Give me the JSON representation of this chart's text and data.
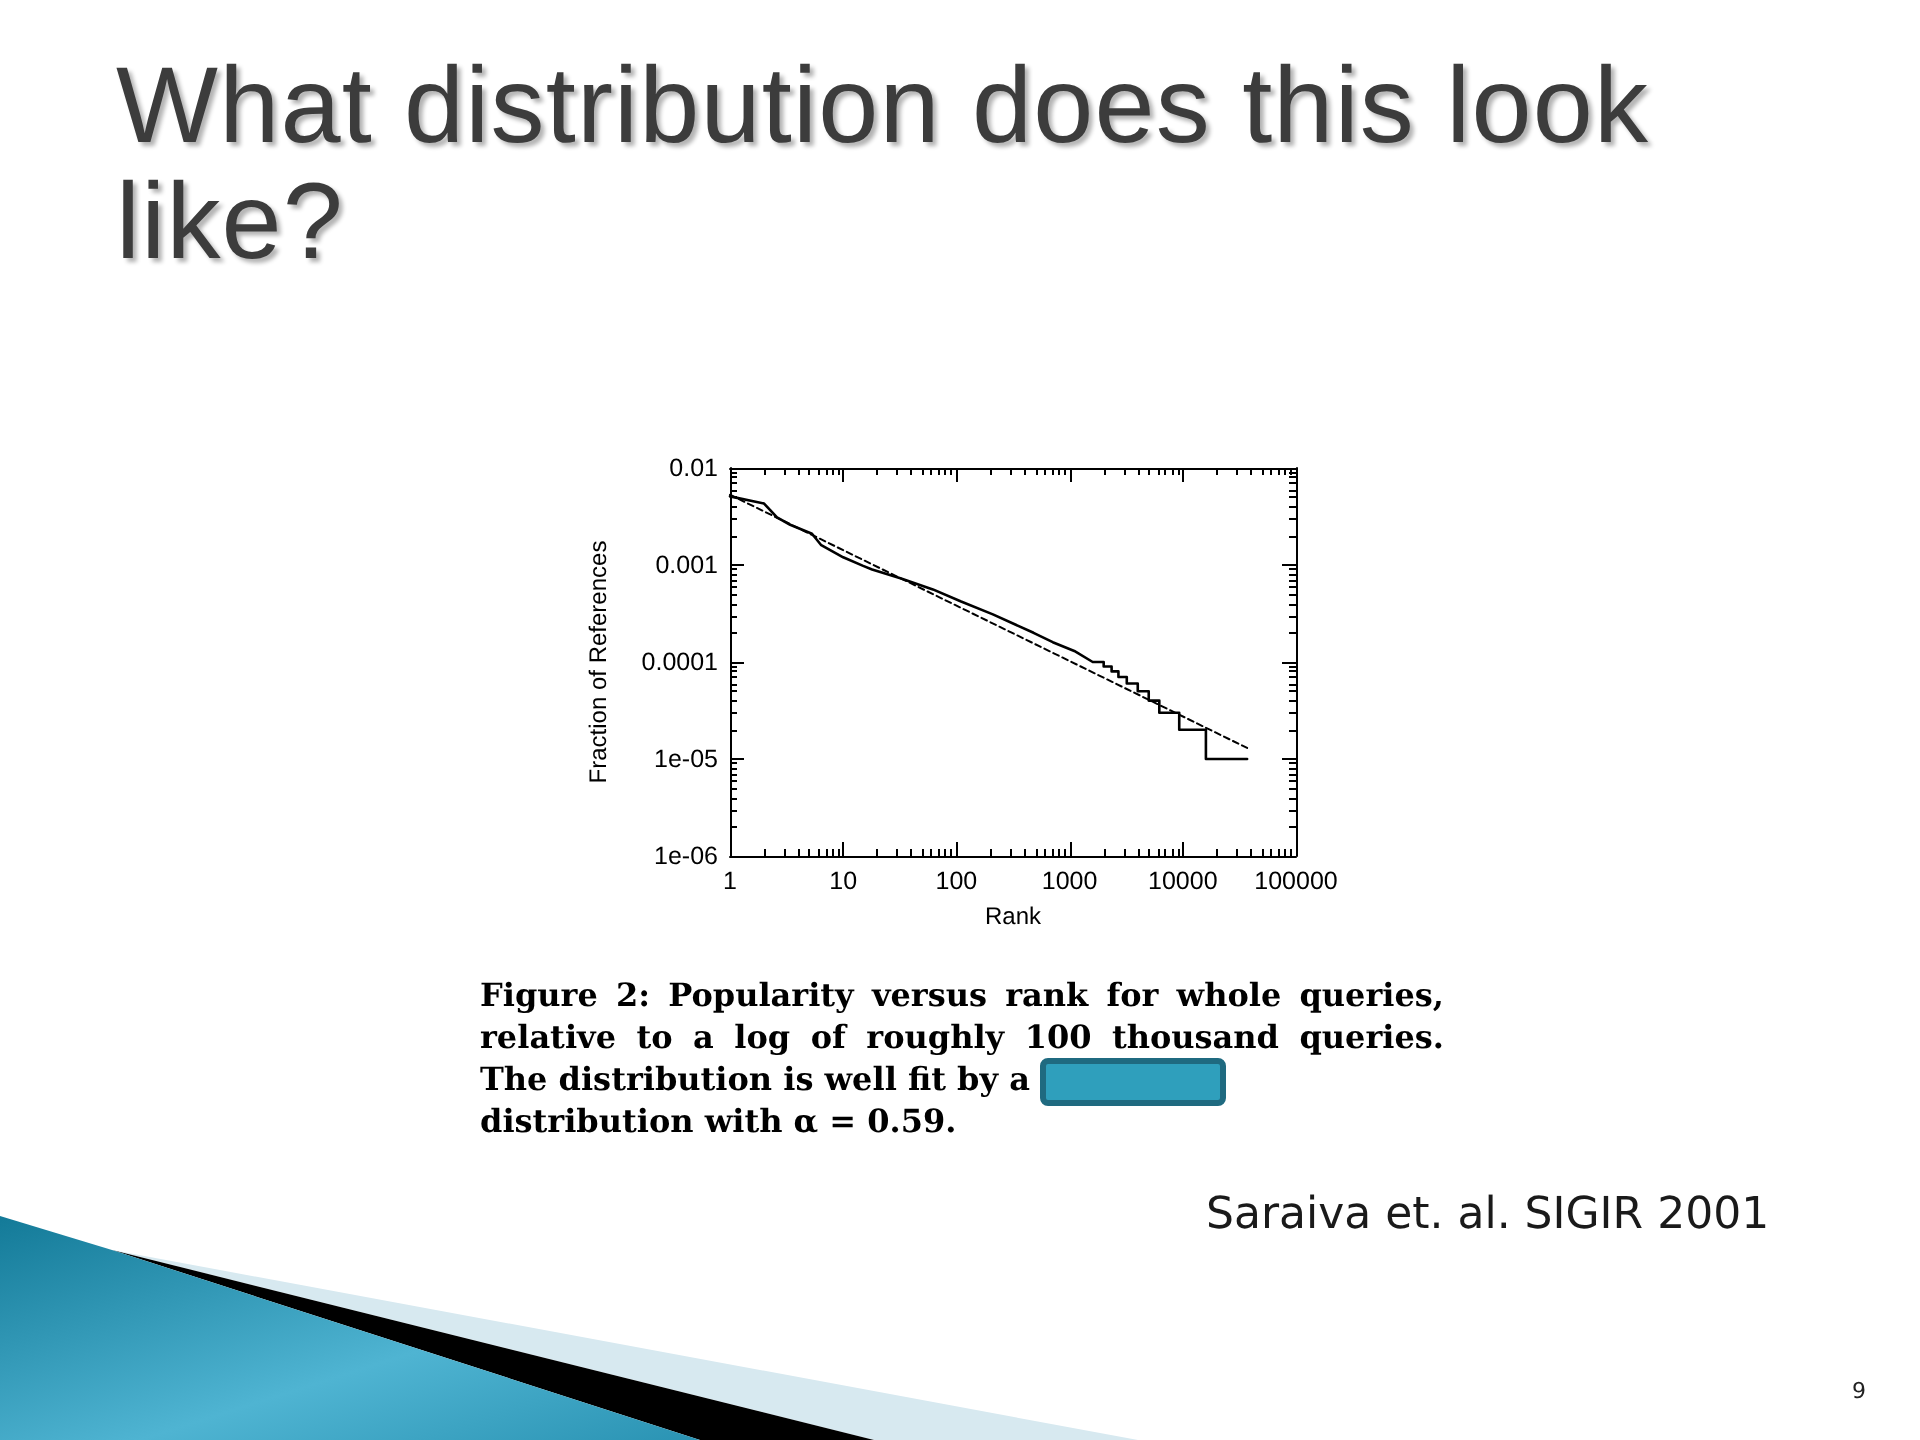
{
  "chart_data": {
    "type": "line",
    "title": "What distribution does this look like?",
    "xlabel": "Rank",
    "ylabel": "Fraction of References",
    "log": "xy",
    "marker": "none",
    "xlim": [
      1,
      100000
    ],
    "xticks": [
      1,
      10,
      100,
      1000,
      10000,
      100000
    ],
    "ylim": [
      1e-06,
      0.01
    ],
    "yticks": [
      {
        "value": 1e-06,
        "label": "1e-06"
      },
      {
        "value": 1e-05,
        "label": "1e-05"
      },
      0.0001,
      0.001,
      0.01
    ],
    "series": [
      {
        "color": "#000000",
        "line_style": "solid",
        "x": [
          1,
          2,
          2.6,
          3.4,
          5.3,
          6.4,
          10,
          15,
          18,
          32,
          62,
          110,
          210,
          480,
          710,
          1100,
          1600,
          2000,
          2000,
          2350,
          2350,
          2700,
          2700,
          3200,
          3200,
          4000,
          4000,
          5000,
          5000,
          6200,
          6200,
          9300,
          9300,
          16000,
          16000,
          37000
        ],
        "values": [
          0.0051,
          0.0043,
          0.0031,
          0.0026,
          0.0021,
          0.0016,
          0.0012,
          0.00098,
          0.0009,
          0.00073,
          0.00056,
          0.00042,
          0.00031,
          0.0002,
          0.00016,
          0.00013,
          0.0001,
          0.0001,
          9e-05,
          9e-05,
          8e-05,
          8e-05,
          7e-05,
          7e-05,
          6e-05,
          6e-05,
          5e-05,
          5e-05,
          4e-05,
          4e-05,
          3e-05,
          3e-05,
          2e-05,
          2e-05,
          1e-05,
          1e-05
        ]
      },
      {
        "color": "#000000",
        "line_style": "dashed",
        "x": [
          1,
          37000
        ],
        "values": [
          0.0053,
          1.3e-05
        ]
      }
    ],
    "annotations": [
      "Figure 2: Popularity versus rank for whole queries, relative to a log of roughly 100 thousand queries. The distribution is well fit by a",
      "distribution with α = 0.59.",
      "Saraiva et. al. SIGIR 2001",
      "9"
    ]
  }
}
